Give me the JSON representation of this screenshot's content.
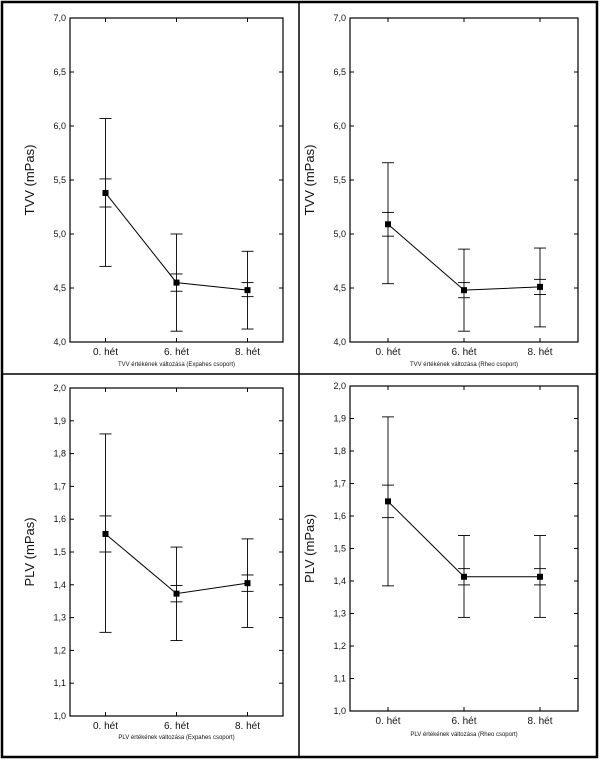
{
  "chart_data": [
    {
      "type": "line",
      "ylabel": "TVV (mPas)",
      "xlabel": "TVV értékének változása (Expahes csoport)",
      "categories": [
        "0. hét",
        "6. hét",
        "8. hét"
      ],
      "ylim": [
        4.0,
        7.0
      ],
      "ytick_labels": [
        "4,0",
        "4,5",
        "5,0",
        "5,5",
        "6,0",
        "6,5",
        "7,0"
      ],
      "series": [
        {
          "values": [
            5.38,
            4.55,
            4.48
          ],
          "sd_low": [
            4.7,
            4.1,
            4.12
          ],
          "sd_high": [
            6.07,
            5.0,
            4.84
          ],
          "ci_low": [
            5.25,
            4.47,
            4.42
          ],
          "ci_high": [
            5.51,
            4.63,
            4.55
          ]
        }
      ]
    },
    {
      "type": "line",
      "ylabel": "TVV (mPas)",
      "xlabel": "TVV értékének változása (Rheo csoport)",
      "categories": [
        "0. hét",
        "6. hét",
        "8. hét"
      ],
      "ylim": [
        4.0,
        7.0
      ],
      "ytick_labels": [
        "4,0",
        "4,5",
        "5,0",
        "5,5",
        "6,0",
        "6,5",
        "7,0"
      ],
      "series": [
        {
          "values": [
            5.09,
            4.48,
            4.51
          ],
          "sd_low": [
            4.54,
            4.1,
            4.14
          ],
          "sd_high": [
            5.66,
            4.86,
            4.87
          ],
          "ci_low": [
            4.98,
            4.41,
            4.44
          ],
          "ci_high": [
            5.2,
            4.55,
            4.58
          ]
        }
      ]
    },
    {
      "type": "line",
      "ylabel": "PLV (mPas)",
      "xlabel": "PLV értékének változása (Expahes csoport)",
      "categories": [
        "0. hét",
        "6. hét",
        "8. hét"
      ],
      "ylim": [
        1.0,
        2.0
      ],
      "ytick_labels": [
        "1,0",
        "1,1",
        "1,2",
        "1,3",
        "1,4",
        "1,5",
        "1,6",
        "1,7",
        "1,8",
        "1,9",
        "2,0"
      ],
      "series": [
        {
          "values": [
            1.555,
            1.373,
            1.405
          ],
          "sd_low": [
            1.255,
            1.23,
            1.27
          ],
          "sd_high": [
            1.86,
            1.515,
            1.54
          ],
          "ci_low": [
            1.5,
            1.348,
            1.38
          ],
          "ci_high": [
            1.61,
            1.398,
            1.43
          ]
        }
      ]
    },
    {
      "type": "line",
      "ylabel": "PLV (mPas)",
      "xlabel": "PLV értékének változása (Rheo csoport)",
      "categories": [
        "0. hét",
        "6. hét",
        "8. hét"
      ],
      "ylim": [
        1.0,
        2.0
      ],
      "ytick_labels": [
        "1,0",
        "1,1",
        "1,2",
        "1,3",
        "1,4",
        "1,5",
        "1,6",
        "1,7",
        "1,8",
        "1,9",
        "2,0"
      ],
      "series": [
        {
          "values": [
            1.645,
            1.413,
            1.413
          ],
          "sd_low": [
            1.385,
            1.288,
            1.288
          ],
          "sd_high": [
            1.905,
            1.54,
            1.54
          ],
          "ci_low": [
            1.595,
            1.388,
            1.388
          ],
          "ci_high": [
            1.695,
            1.438,
            1.438
          ]
        }
      ]
    }
  ]
}
